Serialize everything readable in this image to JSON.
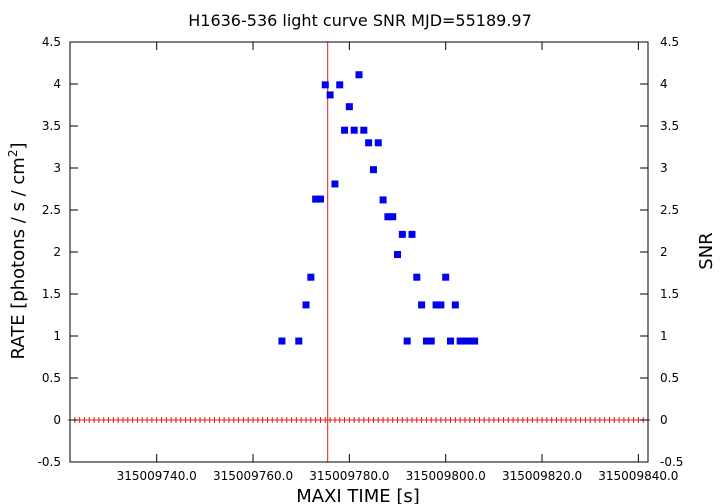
{
  "chart_data": {
    "type": "line",
    "title": "H1636-536 light curve  SNR MJD=55189.97",
    "xlabel": "MAXI TIME [s]",
    "ylabel": "RATE [photons / s / cm2]",
    "ylabel_main": "RATE [photons / s / cm",
    "ylabel_sup": "2",
    "ylabel_close": "]",
    "y2label": "SNR",
    "xlim": [
      315009722,
      315009842
    ],
    "ylim": [
      -0.5,
      4.5
    ],
    "y2lim": [
      -0.5,
      4.5
    ],
    "x_ticks": [
      315009740,
      315009760,
      315009780,
      315009800,
      315009820,
      315009840
    ],
    "x_tick_labels": [
      "315009740.0",
      "315009760.0",
      "315009780.0",
      "315009800.0",
      "315009820.0",
      "315009840.0"
    ],
    "y_ticks": [
      -0.5,
      0,
      0.5,
      1,
      1.5,
      2,
      2.5,
      3,
      3.5,
      4,
      4.5
    ],
    "y_tick_labels": [
      "-0.5",
      "0",
      "0.5",
      "1",
      "1.5",
      "2",
      "2.5",
      "3",
      "3.5",
      "4",
      "4.5"
    ],
    "y2_tick_labels": [
      "-0.5",
      "0",
      "0.5",
      "1",
      "1.5",
      "2",
      "2.5",
      "3",
      "3.5",
      "4",
      "4.5"
    ],
    "marker_line_x": 315009775.5,
    "colors": {
      "rate": "#e41a1c",
      "snr": "#0000ee",
      "marker": "#e41a1c"
    },
    "series": [
      {
        "name": "RATE",
        "style": "histogram-steps-with-errorbars",
        "x": [
          315009722,
          315009723,
          315009724,
          315009725,
          315009726,
          315009727,
          315009728,
          315009729,
          315009730,
          315009731,
          315009732,
          315009733,
          315009734,
          315009735,
          315009736,
          315009737,
          315009738,
          315009739,
          315009740,
          315009741,
          315009742,
          315009743,
          315009744,
          315009745,
          315009746,
          315009747,
          315009748,
          315009749,
          315009750,
          315009751,
          315009752,
          315009753,
          315009754,
          315009755,
          315009756,
          315009757,
          315009758,
          315009759,
          315009760,
          315009761,
          315009762,
          315009763,
          315009764,
          315009765,
          315009766,
          315009767,
          315009768,
          315009769,
          315009770,
          315009771,
          315009772,
          315009773,
          315009774,
          315009775,
          315009776,
          315009777,
          315009778,
          315009779,
          315009780,
          315009781,
          315009782,
          315009783,
          315009784,
          315009785,
          315009786,
          315009787,
          315009788,
          315009789,
          315009790,
          315009791,
          315009792,
          315009793,
          315009794,
          315009795,
          315009796,
          315009797,
          315009798,
          315009799,
          315009800,
          315009801,
          315009802,
          315009803,
          315009804,
          315009805,
          315009806,
          315009807,
          315009808,
          315009809,
          315009810,
          315009811,
          315009812,
          315009813,
          315009814,
          315009815,
          315009816,
          315009817,
          315009818,
          315009819,
          315009820,
          315009821,
          315009822,
          315009823,
          315009824,
          315009825,
          315009826,
          315009827,
          315009828,
          315009829,
          315009830,
          315009831,
          315009832,
          315009833,
          315009834,
          315009835,
          315009836,
          315009837,
          315009838,
          315009839,
          315009840,
          315009841,
          315009842
        ],
        "values": [
          0,
          0,
          0,
          0,
          0,
          0,
          0,
          0,
          0,
          0,
          0,
          0,
          0,
          0,
          0,
          0,
          0,
          0,
          0,
          0,
          0,
          0,
          0,
          0,
          0,
          0,
          0,
          0,
          0,
          0,
          0,
          0,
          0,
          0,
          0,
          0,
          0,
          0,
          0,
          0,
          0,
          0,
          0,
          0,
          0,
          0,
          0,
          0,
          0,
          0,
          0,
          0,
          0,
          0,
          0,
          0,
          0,
          0,
          0,
          0,
          0,
          0,
          0,
          0,
          0,
          0,
          0,
          0,
          0,
          0,
          0,
          0,
          0,
          0,
          0,
          0,
          0,
          0,
          0,
          0,
          0,
          0,
          0,
          0,
          0,
          0,
          0,
          0,
          0,
          0,
          0,
          0,
          0,
          0,
          0,
          0,
          0,
          0,
          0,
          0,
          0,
          0,
          0,
          0,
          0,
          0,
          0,
          0,
          0,
          0,
          0,
          0,
          0,
          0,
          0,
          0,
          0,
          0,
          0,
          0,
          0
        ],
        "errors": [
          0,
          0,
          0,
          0,
          0,
          0,
          0,
          0,
          0,
          0,
          0,
          0,
          0,
          0,
          0,
          0,
          0,
          0,
          0,
          0,
          0,
          0,
          0,
          0,
          0,
          0,
          0,
          0,
          0,
          0,
          0,
          0,
          0,
          0,
          0,
          0,
          0,
          0,
          0,
          0,
          0,
          0,
          0,
          0,
          0,
          0,
          0,
          0,
          0,
          0,
          0,
          0,
          0,
          0,
          0,
          0,
          0,
          0,
          0,
          0,
          0,
          0,
          0,
          0,
          0,
          0,
          0,
          0,
          0,
          0,
          0,
          0,
          0,
          0,
          0,
          0,
          0,
          0,
          0,
          0,
          0,
          0,
          0,
          0,
          0,
          0,
          0,
          0,
          0,
          0,
          0,
          0,
          0,
          0,
          0,
          0,
          0,
          0,
          0,
          0,
          0,
          0,
          0,
          0,
          0,
          0,
          0,
          0,
          0,
          0,
          0,
          0,
          0,
          0,
          0,
          0,
          0,
          0,
          0,
          0,
          0
        ]
      },
      {
        "name": "SNR",
        "style": "square-markers",
        "x": [
          315009766,
          315009769.5,
          315009771,
          315009772,
          315009773,
          315009774,
          315009775,
          315009776,
          315009777,
          315009778,
          315009779,
          315009780,
          315009781,
          315009782,
          315009783,
          315009784,
          315009785,
          315009786,
          315009787,
          315009788,
          315009789,
          315009790,
          315009791,
          315009792,
          315009793,
          315009794,
          315009795,
          315009796,
          315009797,
          315009798,
          315009799,
          315009800,
          315009801,
          315009802,
          315009803,
          315009804,
          315009805,
          315009806
        ],
        "values": [
          0.94,
          0.94,
          1.37,
          1.7,
          2.63,
          2.63,
          3.99,
          3.87,
          2.81,
          3.99,
          3.45,
          3.73,
          3.45,
          4.11,
          3.45,
          3.3,
          2.98,
          3.3,
          2.62,
          2.42,
          2.42,
          1.97,
          2.21,
          0.94,
          2.21,
          1.7,
          1.37,
          0.94,
          0.94,
          1.37,
          1.37,
          1.7,
          0.94,
          1.37,
          0.94,
          0.94,
          0.94,
          0.94
        ]
      }
    ],
    "grid": false,
    "legend": "none"
  }
}
